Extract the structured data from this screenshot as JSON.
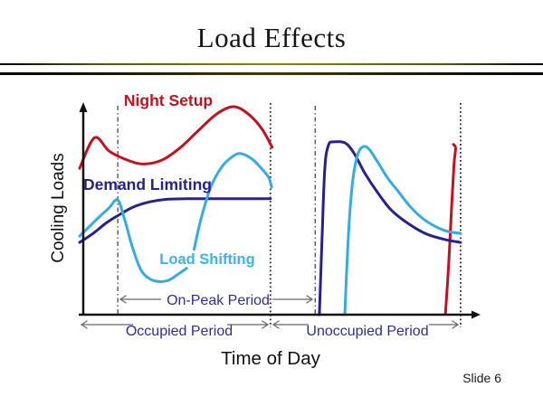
{
  "slide": {
    "title": "Load Effects",
    "slide_number": "Slide 6"
  },
  "chart": {
    "y_axis_label": "Cooling Loads",
    "x_axis_label": "Time of Day",
    "series_labels": {
      "night_setup": "Night Setup",
      "demand_limiting": "Demand Limiting",
      "load_shifting": "Load Shifting"
    },
    "annotations": {
      "on_peak": "On-Peak Period",
      "occupied": "Occupied Period",
      "unoccupied": "Unoccupied Period"
    },
    "colors": {
      "night_setup": "#c1121f",
      "demand_limiting": "#28218c",
      "load_shifting": "#35acdf",
      "load_shifting_label": "#3fb4e2",
      "annotation_text": "#312e93",
      "arrow": "#666666",
      "ref_dashdot": "#555555",
      "ref_dotted": "#2a2a2a",
      "axis": "#111111",
      "title_text": "#161616",
      "divider_yellow": "#ffff00"
    }
  },
  "chart_data": {
    "type": "line",
    "title": "Load Effects",
    "xlabel": "Time of Day",
    "ylabel": "Cooling Loads",
    "axes_numeric": false,
    "x_range": [
      0,
      24
    ],
    "y_range": [
      0,
      100
    ],
    "note": "Qualitative HVAC concept chart; points estimated in relative units (x = fraction of day 0-24, y = relative cooling load 0-100).",
    "boundaries": {
      "occupied_period": [
        0,
        11.5
      ],
      "on_peak_period": [
        2.3,
        11.5
      ],
      "unoccupied_period": [
        11.5,
        22.96
      ],
      "shift_marker": 14.2
    },
    "ref_lines": [
      {
        "x": 2.3,
        "style": "dashdot"
      },
      {
        "x": 11.5,
        "style": "dotted"
      },
      {
        "x": 14.2,
        "style": "dashdot"
      },
      {
        "x": 22.96,
        "style": "dotted"
      }
    ],
    "series": [
      {
        "name": "Night Setup",
        "color_key": "night_setup",
        "segments": [
          [
            [
              0,
              69.5
            ],
            [
              0.9,
              84
            ],
            [
              1.8,
              77.5
            ],
            [
              3.0,
              73
            ],
            [
              3.9,
              71.5
            ],
            [
              5.0,
              73.5
            ],
            [
              6.1,
              79.5
            ],
            [
              7.1,
              87
            ],
            [
              8.3,
              95.5
            ],
            [
              9.3,
              98.7
            ],
            [
              10.2,
              95
            ],
            [
              11.0,
              88
            ],
            [
              11.6,
              79.5
            ]
          ],
          [
            [
              22.05,
              0.5
            ],
            [
              22.25,
              25
            ],
            [
              22.42,
              51
            ],
            [
              22.56,
              71
            ],
            [
              22.66,
              79
            ],
            [
              22.52,
              80.8
            ]
          ]
        ]
      },
      {
        "name": "Demand Limiting",
        "color_key": "demand_limiting",
        "segments": [
          [
            [
              0,
              34.3
            ],
            [
              0.8,
              38.5
            ],
            [
              1.6,
              43.5
            ],
            [
              2.3,
              47
            ],
            [
              3.2,
              51
            ],
            [
              4.2,
              53.5
            ],
            [
              5.2,
              54.7
            ],
            [
              6.5,
              55
            ],
            [
              8.0,
              55
            ],
            [
              9.5,
              55
            ],
            [
              11.5,
              55
            ]
          ],
          [
            [
              14.45,
              0
            ],
            [
              14.62,
              38
            ],
            [
              14.78,
              70
            ],
            [
              15.0,
              80.5
            ],
            [
              15.3,
              82
            ],
            [
              16.0,
              81.5
            ],
            [
              16.55,
              76.5
            ],
            [
              17.2,
              67
            ],
            [
              18.0,
              57.5
            ],
            [
              18.8,
              49.5
            ],
            [
              19.85,
              43
            ],
            [
              20.9,
              38.3
            ],
            [
              22.0,
              35.7
            ],
            [
              22.96,
              34.3
            ]
          ]
        ]
      },
      {
        "name": "Load Shifting",
        "color_key": "load_shifting",
        "segments": [
          [
            [
              0,
              37.3
            ],
            [
              1.0,
              45
            ],
            [
              1.75,
              50.5
            ],
            [
              2.29,
              54.5
            ],
            [
              2.7,
              45.5
            ],
            [
              3.2,
              31.5
            ],
            [
              3.75,
              20.5
            ],
            [
              4.45,
              16.2
            ],
            [
              5.3,
              16.2
            ],
            [
              5.95,
              19.3
            ],
            [
              6.45,
              22
            ]
          ],
          [
            [
              6.9,
              31
            ],
            [
              7.3,
              45
            ],
            [
              7.9,
              60.5
            ],
            [
              8.6,
              70.5
            ],
            [
              9.3,
              75.5
            ],
            [
              9.75,
              76.4
            ],
            [
              10.4,
              73.8
            ],
            [
              11.0,
              69
            ],
            [
              11.4,
              65
            ],
            [
              11.57,
              60.5
            ]
          ],
          [
            [
              15.98,
              0
            ],
            [
              16.12,
              25
            ],
            [
              16.28,
              48
            ],
            [
              16.5,
              66
            ],
            [
              16.78,
              76.5
            ],
            [
              17.1,
              79.8
            ],
            [
              17.45,
              78.5
            ],
            [
              18.0,
              72
            ],
            [
              18.55,
              65
            ],
            [
              19.2,
              58.5
            ],
            [
              19.9,
              51.5
            ],
            [
              20.7,
              45.5
            ],
            [
              21.5,
              41.6
            ],
            [
              22.2,
              39.5
            ],
            [
              22.96,
              38.6
            ]
          ]
        ]
      }
    ]
  }
}
